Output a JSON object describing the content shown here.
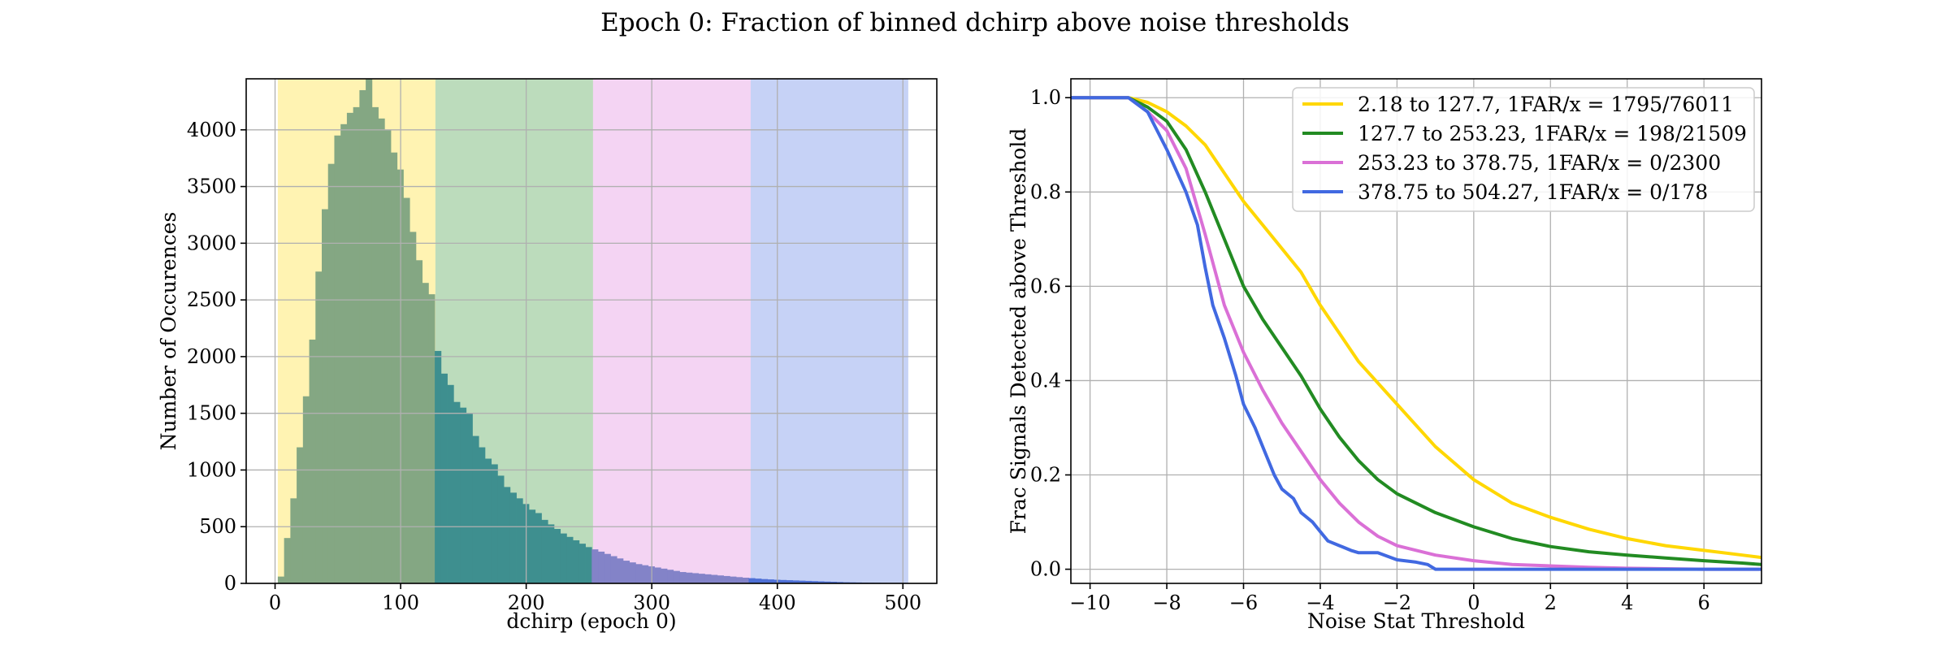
{
  "figure": {
    "title": "Epoch 0: Fraction of binned dchirp above noise thresholds"
  },
  "chart_data": [
    {
      "type": "bar",
      "subtype": "histogram",
      "xlabel": "dchirp (epoch 0)",
      "ylabel": "Number of Occurences",
      "xlim": [
        -23,
        527
      ],
      "ylim": [
        0,
        4450
      ],
      "x_ticks": [
        0,
        100,
        200,
        300,
        400,
        500
      ],
      "y_ticks": [
        0,
        500,
        1000,
        1500,
        2000,
        2500,
        3000,
        3500,
        4000
      ],
      "grid": true,
      "bin_width": 5,
      "bins_start": 2.18,
      "counts": [
        60,
        400,
        750,
        1200,
        1650,
        2150,
        2750,
        3300,
        3700,
        3950,
        4050,
        4150,
        4200,
        4350,
        4450,
        4200,
        4100,
        4000,
        3800,
        3650,
        3400,
        3100,
        2850,
        2650,
        2550,
        2050,
        1850,
        1750,
        1600,
        1550,
        1500,
        1300,
        1200,
        1100,
        1050,
        950,
        850,
        800,
        750,
        700,
        650,
        620,
        560,
        520,
        480,
        440,
        410,
        380,
        350,
        320,
        300,
        280,
        260,
        240,
        220,
        200,
        185,
        170,
        160,
        150,
        140,
        130,
        120,
        110,
        100,
        95,
        90,
        85,
        80,
        75,
        70,
        65,
        60,
        55,
        50,
        46,
        42,
        38,
        35,
        32,
        30,
        28,
        26,
        24,
        22,
        20,
        18,
        16,
        14,
        12,
        10,
        9,
        8,
        7,
        6,
        5,
        4,
        3,
        2,
        1
      ],
      "bin_regions": [
        {
          "from": 2.18,
          "to": 127.7,
          "color": "#ffd700"
        },
        {
          "from": 127.7,
          "to": 253.23,
          "color": "#228b22"
        },
        {
          "from": 253.23,
          "to": 378.75,
          "color": "#da70d6"
        },
        {
          "from": 378.75,
          "to": 504.27,
          "color": "#4169e1"
        }
      ],
      "bar_colors": [
        "#84a783",
        "#3e8f8f",
        "#8383c8",
        "#4e70d6"
      ]
    },
    {
      "type": "line",
      "xlabel": "Noise Stat Threshold",
      "ylabel": "Frac Signals Detected above Threshold",
      "xlim": [
        -10.5,
        7.5
      ],
      "ylim": [
        -0.03,
        1.04
      ],
      "x_ticks": [
        -10,
        -8,
        -6,
        -4,
        -2,
        0,
        2,
        4,
        6
      ],
      "x_tick_labels": [
        "−10",
        "−8",
        "−6",
        "−4",
        "−2",
        "0",
        "2",
        "4",
        "6"
      ],
      "y_ticks": [
        0.0,
        0.2,
        0.4,
        0.6,
        0.8,
        1.0
      ],
      "y_tick_labels": [
        "0.0",
        "0.2",
        "0.4",
        "0.6",
        "0.8",
        "1.0"
      ],
      "grid": true,
      "legend_position": "top-right",
      "series": [
        {
          "name": "2.18 to 127.7, 1FAR/x = 1795/76011",
          "color": "#ffd700",
          "x": [
            -10.5,
            -9.5,
            -9,
            -8.5,
            -8,
            -7.5,
            -7,
            -6.5,
            -6,
            -5.5,
            -5,
            -4.5,
            -4,
            -3.5,
            -3,
            -2,
            -1,
            0,
            1,
            2,
            3,
            4,
            5,
            6,
            7,
            7.5
          ],
          "y": [
            1.0,
            1.0,
            1.0,
            0.99,
            0.97,
            0.94,
            0.9,
            0.84,
            0.78,
            0.73,
            0.68,
            0.63,
            0.56,
            0.5,
            0.44,
            0.35,
            0.26,
            0.19,
            0.14,
            0.11,
            0.085,
            0.065,
            0.05,
            0.04,
            0.03,
            0.025
          ]
        },
        {
          "name": "127.7 to 253.23, 1FAR/x = 198/21509",
          "color": "#228b22",
          "x": [
            -10.5,
            -9.5,
            -9,
            -8.5,
            -8,
            -7.5,
            -7,
            -6.5,
            -6,
            -5.5,
            -5,
            -4.5,
            -4,
            -3.5,
            -3,
            -2.5,
            -2,
            -1,
            0,
            1,
            2,
            3,
            4,
            5,
            6,
            7,
            7.5
          ],
          "y": [
            1.0,
            1.0,
            1.0,
            0.98,
            0.95,
            0.89,
            0.8,
            0.7,
            0.6,
            0.53,
            0.47,
            0.41,
            0.34,
            0.28,
            0.23,
            0.19,
            0.16,
            0.12,
            0.09,
            0.065,
            0.048,
            0.037,
            0.03,
            0.024,
            0.018,
            0.013,
            0.01
          ]
        },
        {
          "name": "253.23 to 378.75, 1FAR/x = 0/2300",
          "color": "#da70d6",
          "x": [
            -10.5,
            -9.5,
            -9,
            -8.5,
            -8,
            -7.5,
            -7,
            -6.5,
            -6,
            -5.5,
            -5,
            -4.5,
            -4,
            -3.5,
            -3,
            -2.5,
            -2,
            -1,
            0,
            1,
            2,
            3,
            4,
            5,
            6,
            7.5
          ],
          "y": [
            1.0,
            1.0,
            1.0,
            0.97,
            0.93,
            0.85,
            0.71,
            0.56,
            0.46,
            0.38,
            0.31,
            0.25,
            0.19,
            0.14,
            0.1,
            0.07,
            0.05,
            0.03,
            0.018,
            0.01,
            0.007,
            0.004,
            0.002,
            0.001,
            0.0,
            0.0
          ]
        },
        {
          "name": "378.75 to 504.27, 1FAR/x = 0/178",
          "color": "#4169e1",
          "x": [
            -10.5,
            -9.5,
            -9,
            -8.5,
            -8,
            -7.5,
            -7.2,
            -7,
            -6.8,
            -6.5,
            -6.2,
            -6,
            -5.7,
            -5.5,
            -5.2,
            -5,
            -4.7,
            -4.5,
            -4.2,
            -4,
            -3.8,
            -3.5,
            -3.2,
            -3,
            -2.5,
            -2,
            -1.5,
            -1.2,
            -1,
            0,
            2,
            4,
            6,
            7.5
          ],
          "y": [
            1.0,
            1.0,
            1.0,
            0.97,
            0.89,
            0.8,
            0.73,
            0.64,
            0.56,
            0.49,
            0.41,
            0.35,
            0.3,
            0.26,
            0.2,
            0.17,
            0.15,
            0.12,
            0.1,
            0.08,
            0.06,
            0.05,
            0.04,
            0.035,
            0.035,
            0.02,
            0.015,
            0.01,
            0.0,
            0.0,
            0.0,
            0.0,
            0.0,
            0.0
          ]
        }
      ]
    }
  ]
}
